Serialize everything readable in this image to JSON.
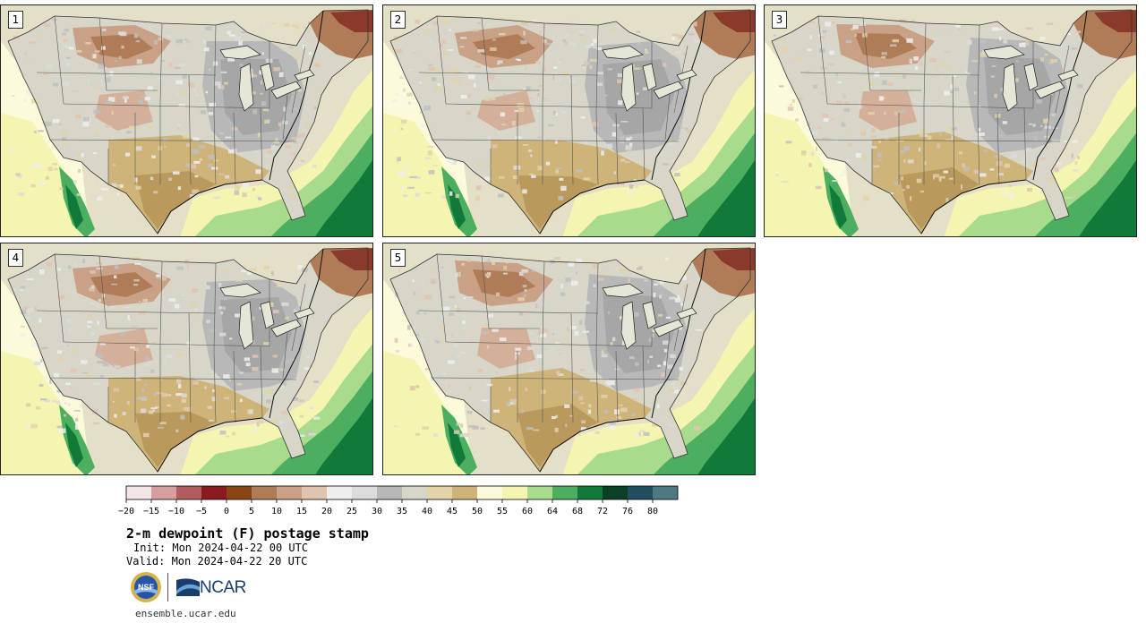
{
  "panels": [
    {
      "label": "1",
      "variant": 0
    },
    {
      "label": "2",
      "variant": 1
    },
    {
      "label": "3",
      "variant": 2
    },
    {
      "label": "4",
      "variant": 3
    },
    {
      "label": "5",
      "variant": 4
    }
  ],
  "colorbar": {
    "ticks": [
      "-20",
      "-15",
      "-10",
      "-5",
      "0",
      "5",
      "10",
      "15",
      "20",
      "25",
      "30",
      "35",
      "40",
      "45",
      "50",
      "55",
      "60",
      "64",
      "68",
      "72",
      "76",
      "80"
    ],
    "colors": [
      "#f3e6e6",
      "#d79ea0",
      "#b15c5e",
      "#8a1a1f",
      "#8b4513",
      "#b07c57",
      "#c9a187",
      "#dfc5b0",
      "#eeeeee",
      "#dcdcdc",
      "#b8b8b8",
      "#d8d6c8",
      "#e2d3a8",
      "#cfb47a",
      "#fbfadb",
      "#f5f5b2",
      "#a8db8c",
      "#4caf5f",
      "#117a3a",
      "#0b3f26",
      "#1f4f5f",
      "#4d7a80"
    ]
  },
  "title": "2-m dewpoint (F) postage stamp",
  "init": "Init: Mon 2024-04-22 00 UTC",
  "valid": "Valid: Mon 2024-04-22 20 UTC",
  "logos": {
    "nsf": "NSF",
    "ncar": "NCAR"
  },
  "site_url": "ensemble.ucar.edu"
}
